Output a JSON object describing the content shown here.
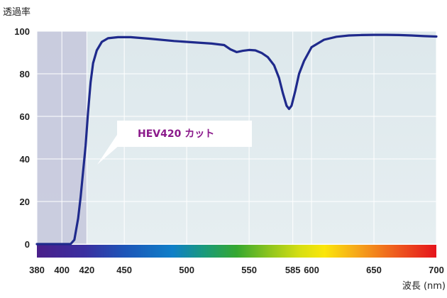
{
  "chart_data": {
    "type": "line",
    "ylabel": "透過率",
    "xlabel": "波長 (nm)",
    "xlim": [
      380,
      700
    ],
    "ylim": [
      0,
      100
    ],
    "yticks": [
      "0",
      "20",
      "40",
      "60",
      "80",
      "100"
    ],
    "xticks": [
      {
        "value": 380,
        "label": "380"
      },
      {
        "value": 400,
        "label": "400"
      },
      {
        "value": 420,
        "label": "420",
        "color": "#8b1a8b"
      },
      {
        "value": 450,
        "label": "450"
      },
      {
        "value": 500,
        "label": "500"
      },
      {
        "value": 550,
        "label": "550"
      },
      {
        "value": 585,
        "label": "585",
        "color": "#e8601c"
      },
      {
        "value": 600,
        "label": "600"
      },
      {
        "value": 650,
        "label": "650"
      },
      {
        "value": 700,
        "label": "700"
      }
    ],
    "grid": true,
    "shaded_region": [
      380,
      420
    ],
    "series": [
      {
        "color": "#1f2a8c",
        "points": [
          [
            380,
            0
          ],
          [
            400,
            0
          ],
          [
            407,
            0
          ],
          [
            410,
            2
          ],
          [
            413,
            12
          ],
          [
            415,
            22
          ],
          [
            417,
            34
          ],
          [
            419,
            46
          ],
          [
            421,
            62
          ],
          [
            423,
            76
          ],
          [
            425,
            85
          ],
          [
            428,
            91
          ],
          [
            432,
            95
          ],
          [
            437,
            96.7
          ],
          [
            445,
            97.2
          ],
          [
            455,
            97.2
          ],
          [
            470,
            96.5
          ],
          [
            490,
            95.4
          ],
          [
            505,
            94.8
          ],
          [
            520,
            94.2
          ],
          [
            530,
            93.5
          ],
          [
            535,
            91.5
          ],
          [
            540,
            90.2
          ],
          [
            545,
            90.8
          ],
          [
            550,
            91.2
          ],
          [
            555,
            91.0
          ],
          [
            560,
            89.8
          ],
          [
            565,
            87.8
          ],
          [
            570,
            84
          ],
          [
            574,
            78
          ],
          [
            577,
            71
          ],
          [
            580,
            65
          ],
          [
            582,
            63.5
          ],
          [
            584,
            65
          ],
          [
            587,
            72
          ],
          [
            590,
            80
          ],
          [
            594,
            86
          ],
          [
            600,
            92.5
          ],
          [
            610,
            96
          ],
          [
            620,
            97.4
          ],
          [
            630,
            98
          ],
          [
            640,
            98.2
          ],
          [
            650,
            98.3
          ],
          [
            660,
            98.3
          ],
          [
            670,
            98.2
          ],
          [
            680,
            98
          ],
          [
            690,
            97.7
          ],
          [
            700,
            97.5
          ]
        ]
      }
    ],
    "annotations": [
      {
        "text": "HEV420 カット",
        "color": "#8b1a8b"
      }
    ]
  }
}
